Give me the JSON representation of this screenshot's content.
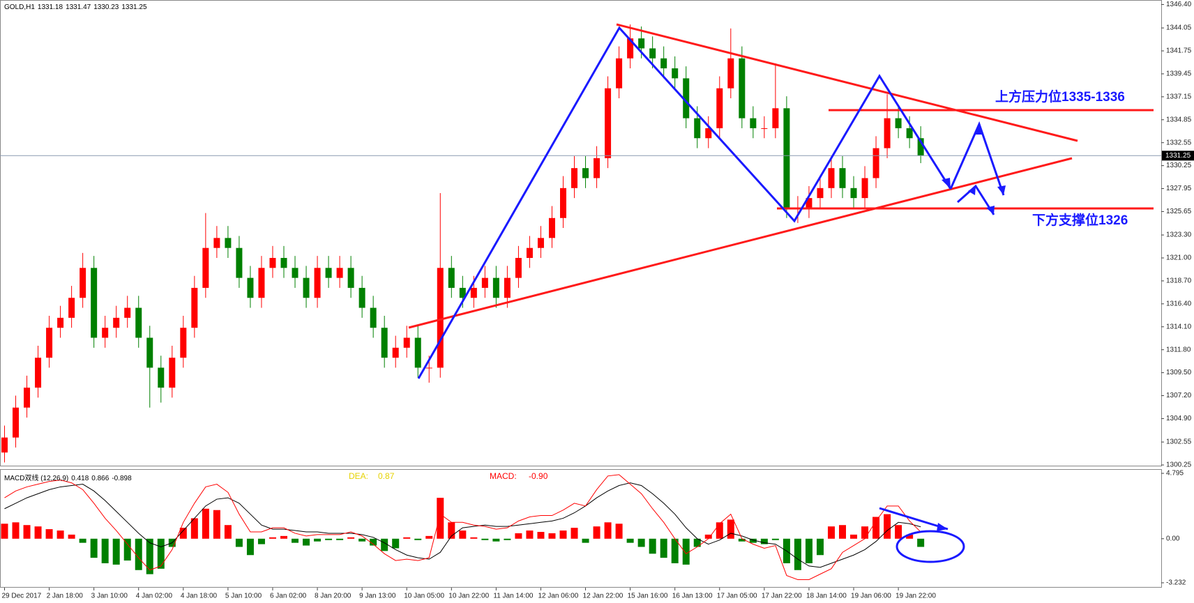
{
  "header": {
    "symbol": "GOLD,H1",
    "ohlc": [
      1331.18,
      1331.47,
      1330.23,
      1331.25
    ]
  },
  "chart_data": {
    "type": "candlestick",
    "categories": [
      "29 Dec 2017",
      null,
      null,
      null,
      "2 Jan 18:00",
      null,
      null,
      null,
      "3 Jan 10:00",
      null,
      null,
      null,
      "4 Jan 02:00",
      null,
      null,
      null,
      "4 Jan 18:00",
      null,
      null,
      null,
      "5 Jan 10:00",
      null,
      null,
      null,
      "6 Jan 02:00",
      null,
      null,
      null,
      "8 Jan 20:00",
      null,
      null,
      null,
      "9 Jan 13:00",
      null,
      null,
      null,
      "10 Jan 05:00",
      null,
      null,
      null,
      "10 Jan 22:00",
      null,
      null,
      null,
      "11 Jan 14:00",
      null,
      null,
      null,
      "12 Jan 06:00",
      null,
      null,
      null,
      "12 Jan 22:00",
      null,
      null,
      null,
      "15 Jan 16:00",
      null,
      null,
      null,
      "16 Jan 13:00",
      null,
      null,
      null,
      "17 Jan 05:00",
      null,
      null,
      null,
      "17 Jan 22:00",
      null,
      null,
      null,
      "18 Jan 14:00",
      null,
      null,
      null,
      "19 Jan 06:00",
      null,
      null,
      null,
      "19 Jan 22:00",
      null,
      null
    ],
    "open": [
      1301.5,
      1303,
      1306,
      1308,
      1311,
      1314,
      1315,
      1317,
      1320,
      1313,
      1314,
      1315,
      1316,
      1313,
      1310,
      1308,
      1311,
      1314,
      1318,
      1322,
      1323,
      1322,
      1319,
      1317,
      1320,
      1321,
      1320,
      1319,
      1317,
      1320,
      1319,
      1320,
      1318,
      1316,
      1314,
      1311,
      1312,
      1313,
      1310,
      1310,
      1320,
      1318,
      1317,
      1318,
      1319,
      1317,
      1319,
      1321,
      1322,
      1323,
      1325,
      1328,
      1330,
      1329,
      1331,
      1338,
      1341,
      1343,
      1342,
      1341,
      1340,
      1339,
      1335,
      1333,
      1334,
      1338,
      1341,
      1335,
      1334,
      1334,
      1336,
      1326,
      1326,
      1327,
      1328,
      1330,
      1328,
      1327,
      1329,
      1332,
      1335,
      1334,
      1333
    ],
    "high": [
      1304.2,
      1307.2,
      1309.2,
      1312.2,
      1315.2,
      1316.2,
      1318.2,
      1321.5,
      1321.2,
      1315.2,
      1316.2,
      1317.2,
      1317.2,
      1314.2,
      1311.2,
      1312.2,
      1315.2,
      1319.2,
      1325.5,
      1324.2,
      1324.2,
      1323.2,
      1320.2,
      1321.2,
      1322.2,
      1322.2,
      1321.2,
      1320.2,
      1321.2,
      1321.2,
      1321.2,
      1321.2,
      1319.2,
      1317.2,
      1315.2,
      1313.2,
      1314.2,
      1314.2,
      1311.2,
      1327.5,
      1321.2,
      1319.2,
      1319.2,
      1320.2,
      1320.2,
      1320.2,
      1322.2,
      1323.2,
      1324.2,
      1326.2,
      1329.2,
      1331.2,
      1331.2,
      1332.2,
      1339.2,
      1342.2,
      1344.4,
      1344.2,
      1343.2,
      1342.2,
      1341.2,
      1340.2,
      1336.2,
      1335.2,
      1339.2,
      1344,
      1342.2,
      1336.2,
      1335.2,
      1340.5,
      1337.2,
      1327.2,
      1328.2,
      1329.2,
      1331.2,
      1331.2,
      1329.2,
      1330.2,
      1333.2,
      1337.4,
      1336.2,
      1335.2,
      1334.2
    ],
    "low": [
      1300.5,
      1302,
      1305,
      1307,
      1310,
      1313,
      1314,
      1316,
      1312,
      1312,
      1313,
      1314,
      1312,
      1306,
      1306.5,
      1307,
      1310,
      1313,
      1317,
      1321,
      1321,
      1318,
      1316,
      1316,
      1319,
      1319,
      1318,
      1316,
      1316,
      1318,
      1318,
      1317,
      1315,
      1313,
      1310,
      1310,
      1311,
      1309,
      1308.5,
      1309,
      1317,
      1316,
      1316,
      1317,
      1316,
      1316,
      1318,
      1320,
      1321,
      1322,
      1324,
      1327,
      1328,
      1328,
      1330,
      1337,
      1340,
      1341,
      1340,
      1339,
      1338,
      1334,
      1332,
      1332,
      1333,
      1337,
      1334,
      1333,
      1333,
      1333,
      1325,
      1324.5,
      1325,
      1326,
      1327,
      1327,
      1326,
      1326,
      1328,
      1331,
      1333,
      1332,
      1330.5
    ],
    "close": [
      1303,
      1306,
      1308,
      1311,
      1314,
      1315,
      1317,
      1320,
      1313,
      1314,
      1315,
      1316,
      1313,
      1310,
      1308,
      1311,
      1314,
      1318,
      1322,
      1323,
      1322,
      1319,
      1317,
      1320,
      1321,
      1320,
      1319,
      1317,
      1320,
      1319,
      1320,
      1318,
      1316,
      1314,
      1311,
      1312,
      1313,
      1310,
      1310,
      1320,
      1318,
      1317,
      1318,
      1319,
      1317,
      1319,
      1321,
      1322,
      1323,
      1325,
      1328,
      1330,
      1329,
      1331,
      1338,
      1341,
      1343,
      1342,
      1341,
      1340,
      1339,
      1335,
      1333,
      1334,
      1338,
      1341,
      1335,
      1334,
      1334,
      1336,
      1326,
      1326,
      1327,
      1328,
      1330,
      1328,
      1327,
      1329,
      1332,
      1335,
      1334,
      1333,
      1331.25
    ],
    "up_color": "#ff0000",
    "down_color": "#008000",
    "ylim": [
      1300.18,
      1346.85
    ],
    "yticks": [
      {
        "value": 1346.4,
        "label": "1346.40"
      },
      {
        "value": 1344.05,
        "label": "1344.05"
      },
      {
        "value": 1341.75,
        "label": "1341.75"
      },
      {
        "value": 1339.45,
        "label": "1339.45"
      },
      {
        "value": 1337.15,
        "label": "1337.15"
      },
      {
        "value": 1334.85,
        "label": "1334.85"
      },
      {
        "value": 1332.55,
        "label": "1332.55"
      },
      {
        "value": 1330.25,
        "label": "1330.25"
      },
      {
        "value": 1327.95,
        "label": "1327.95"
      },
      {
        "value": 1325.65,
        "label": "1325.65"
      },
      {
        "value": 1323.3,
        "label": "1323.30"
      },
      {
        "value": 1321,
        "label": "1321.00"
      },
      {
        "value": 1318.7,
        "label": "1318.70"
      },
      {
        "value": 1316.4,
        "label": "1316.40"
      },
      {
        "value": 1314.1,
        "label": "1314.10"
      },
      {
        "value": 1311.8,
        "label": "1311.80"
      },
      {
        "value": 1309.5,
        "label": "1309.50"
      },
      {
        "value": 1307.2,
        "label": "1307.20"
      },
      {
        "value": 1304.9,
        "label": "1304.90"
      },
      {
        "value": 1302.55,
        "label": "1302.55"
      },
      {
        "value": 1300.25,
        "label": "1300.25"
      }
    ],
    "current_price": 1331.25,
    "annotations": [
      "上方压力位1335-1336",
      "下方支撑位1326"
    ]
  },
  "indicator": {
    "type": "macd",
    "name": "MACD双线 (12,26,9)",
    "values": [
      0.418,
      0.866,
      -0.898
    ],
    "dea_label": "DEA:",
    "dea": 0.87,
    "macd_label": "MACD:",
    "macd": {
      "value": -0.9,
      "label": "-0.90"
    },
    "up_color": "#ff0000",
    "down_color": "#008000",
    "histogram": [
      1.1,
      1.2,
      1.0,
      0.9,
      0.7,
      0.6,
      0.3,
      -0.3,
      -1.4,
      -1.8,
      -1.9,
      -1.6,
      -2.3,
      -2.6,
      -2.2,
      -0.6,
      0.8,
      1.5,
      2.2,
      2.1,
      1.0,
      -0.6,
      -1.2,
      -0.4,
      0.1,
      0.2,
      -0.3,
      -0.5,
      -0.2,
      -0.1,
      -0.1,
      0.1,
      -0.2,
      -0.5,
      -0.9,
      -0.7,
      0.1,
      -0.1,
      0.2,
      3.0,
      1.2,
      0.6,
      0.1,
      -0.1,
      -0.2,
      -0.1,
      0.4,
      0.6,
      0.5,
      0.4,
      0.6,
      0.8,
      -0.3,
      0.9,
      1.2,
      1.1,
      -0.3,
      -0.6,
      -1.1,
      -1.4,
      -1.8,
      -1.9,
      -0.6,
      0.3,
      1.2,
      1.4,
      -0.2,
      -0.3,
      -0.4,
      -0.1,
      -1.8,
      -2.3,
      -1.8,
      -1.2,
      0.9,
      1.0,
      0.3,
      0.9,
      1.6,
      1.8,
      1.0,
      0.3,
      -0.6
    ],
    "lines": [
      {
        "color": "#000000",
        "values": [
          2.2,
          2.6,
          3.0,
          3.3,
          3.6,
          3.8,
          3.9,
          4.0,
          3.5,
          2.8,
          2.0,
          1.2,
          0.4,
          -0.3,
          -0.6,
          -0.3,
          0.6,
          1.5,
          2.4,
          2.9,
          3.0,
          2.6,
          1.8,
          1.0,
          0.7,
          0.7,
          0.6,
          0.5,
          0.5,
          0.4,
          0.4,
          0.4,
          0.3,
          0.1,
          -0.3,
          -0.8,
          -1.2,
          -1.4,
          -1.5,
          -1.0,
          0.2,
          0.8,
          0.9,
          1.0,
          0.9,
          0.9,
          1.0,
          1.1,
          1.2,
          1.3,
          1.5,
          1.9,
          2.4,
          3.0,
          3.5,
          3.9,
          4.1,
          3.9,
          3.3,
          2.6,
          1.8,
          0.8,
          0.0,
          -0.4,
          -0.1,
          0.4,
          0.2,
          -0.1,
          -0.3,
          -0.4,
          -0.9,
          -1.5,
          -2.0,
          -2.1,
          -1.8,
          -1.5,
          -1.2,
          -0.8,
          -0.2,
          0.6,
          1.2,
          1.1,
          0.87
        ]
      },
      {
        "color": "#ff0000",
        "values": [
          3.0,
          3.5,
          3.8,
          4.0,
          4.2,
          4.3,
          4.1,
          3.6,
          2.6,
          1.5,
          0.6,
          -0.4,
          -1.4,
          -2.3,
          -2.0,
          -0.8,
          1.2,
          2.6,
          3.8,
          4.0,
          3.4,
          1.8,
          0.5,
          0.5,
          0.8,
          0.8,
          0.4,
          0.2,
          0.3,
          0.3,
          0.3,
          0.5,
          0.2,
          -0.4,
          -1.1,
          -1.6,
          -1.5,
          -1.6,
          -1.4,
          1.8,
          1.2,
          1.2,
          1.0,
          0.9,
          0.7,
          0.8,
          1.3,
          1.6,
          1.7,
          1.7,
          2.1,
          2.6,
          2.4,
          3.6,
          4.6,
          4.7,
          4.0,
          3.3,
          2.2,
          1.2,
          0.0,
          -1.1,
          -0.6,
          0.0,
          1.1,
          1.8,
          0.0,
          -0.4,
          -0.7,
          -0.5,
          -2.7,
          -3.0,
          -3.0,
          -2.6,
          -2.2,
          -1.0,
          -0.5,
          0.0,
          1.3,
          2.4,
          2.4,
          1.3,
          0.5
        ]
      }
    ],
    "ylim": [
      -3.59,
      5.05
    ],
    "yticks": [
      4.795,
      {
        "value": 0,
        "label": "0.00"
      },
      -3.232
    ]
  }
}
